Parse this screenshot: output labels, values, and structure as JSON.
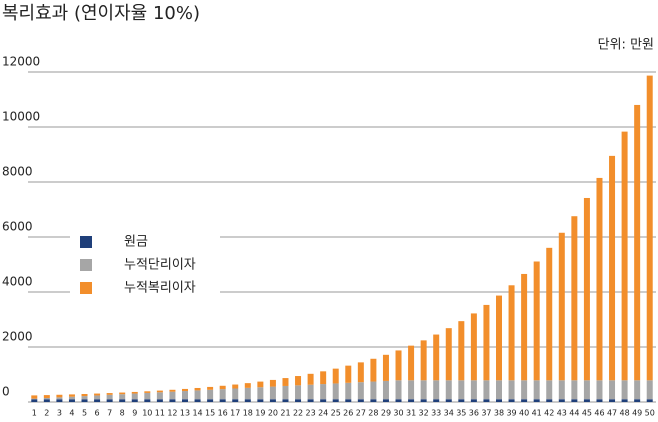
{
  "chart_data": {
    "type": "stacked_bar",
    "title": "복리효과 (연이자율 10%)",
    "subtitle": "단위: 만원",
    "categories": [
      1,
      2,
      3,
      4,
      5,
      6,
      7,
      8,
      9,
      10,
      11,
      12,
      13,
      14,
      15,
      16,
      17,
      18,
      19,
      20,
      21,
      22,
      23,
      24,
      25,
      26,
      27,
      28,
      29,
      30,
      31,
      32,
      33,
      34,
      35,
      36,
      37,
      38,
      39,
      40,
      41,
      42,
      43,
      44,
      45,
      46,
      47,
      48,
      49,
      50
    ],
    "series": [
      {
        "name": "원금",
        "color": "#1f3f7a",
        "values": [
          100,
          100,
          100,
          100,
          100,
          100,
          100,
          100,
          100,
          100,
          100,
          100,
          100,
          100,
          100,
          100,
          100,
          100,
          100,
          100,
          100,
          100,
          100,
          100,
          100,
          100,
          100,
          100,
          100,
          100,
          100,
          100,
          100,
          100,
          100,
          100,
          100,
          100,
          100,
          100,
          100,
          100,
          100,
          100,
          100,
          100,
          100,
          100,
          100,
          100
        ]
      },
      {
        "name": "누적단리이자",
        "color": "#a6a6a6",
        "values": [
          23,
          46,
          69,
          92,
          115,
          138,
          161,
          184,
          207,
          230,
          253,
          276,
          299,
          322,
          345,
          368,
          391,
          414,
          437,
          460,
          483,
          506,
          529,
          552,
          575,
          598,
          621,
          644,
          667,
          690,
          690,
          690,
          690,
          690,
          690,
          690,
          690,
          690,
          690,
          690,
          690,
          690,
          690,
          690,
          690,
          690,
          690,
          690,
          690,
          690
        ]
      },
      {
        "name": "누적복리이자",
        "color": "#f28e2b",
        "values": [
          117,
          105,
          94,
          84,
          76,
          69,
          64,
          60,
          59,
          59,
          62,
          68,
          76,
          88,
          103,
          122,
          144,
          172,
          205,
          243,
          287,
          338,
          396,
          463,
          538,
          624,
          720,
          828,
          949,
          1085,
          1259,
          1451,
          1663,
          1895,
          2150,
          2431,
          2740,
          3080,
          3454,
          3866,
          4319,
          4816,
          5364,
          5966,
          6629,
          7358,
          8160,
          9042,
          10012,
          11079
        ]
      }
    ],
    "ylim": [
      0,
      12000
    ],
    "yticks": [
      0,
      2000,
      4000,
      6000,
      8000,
      10000,
      12000
    ],
    "grid": true,
    "legend": "left"
  }
}
